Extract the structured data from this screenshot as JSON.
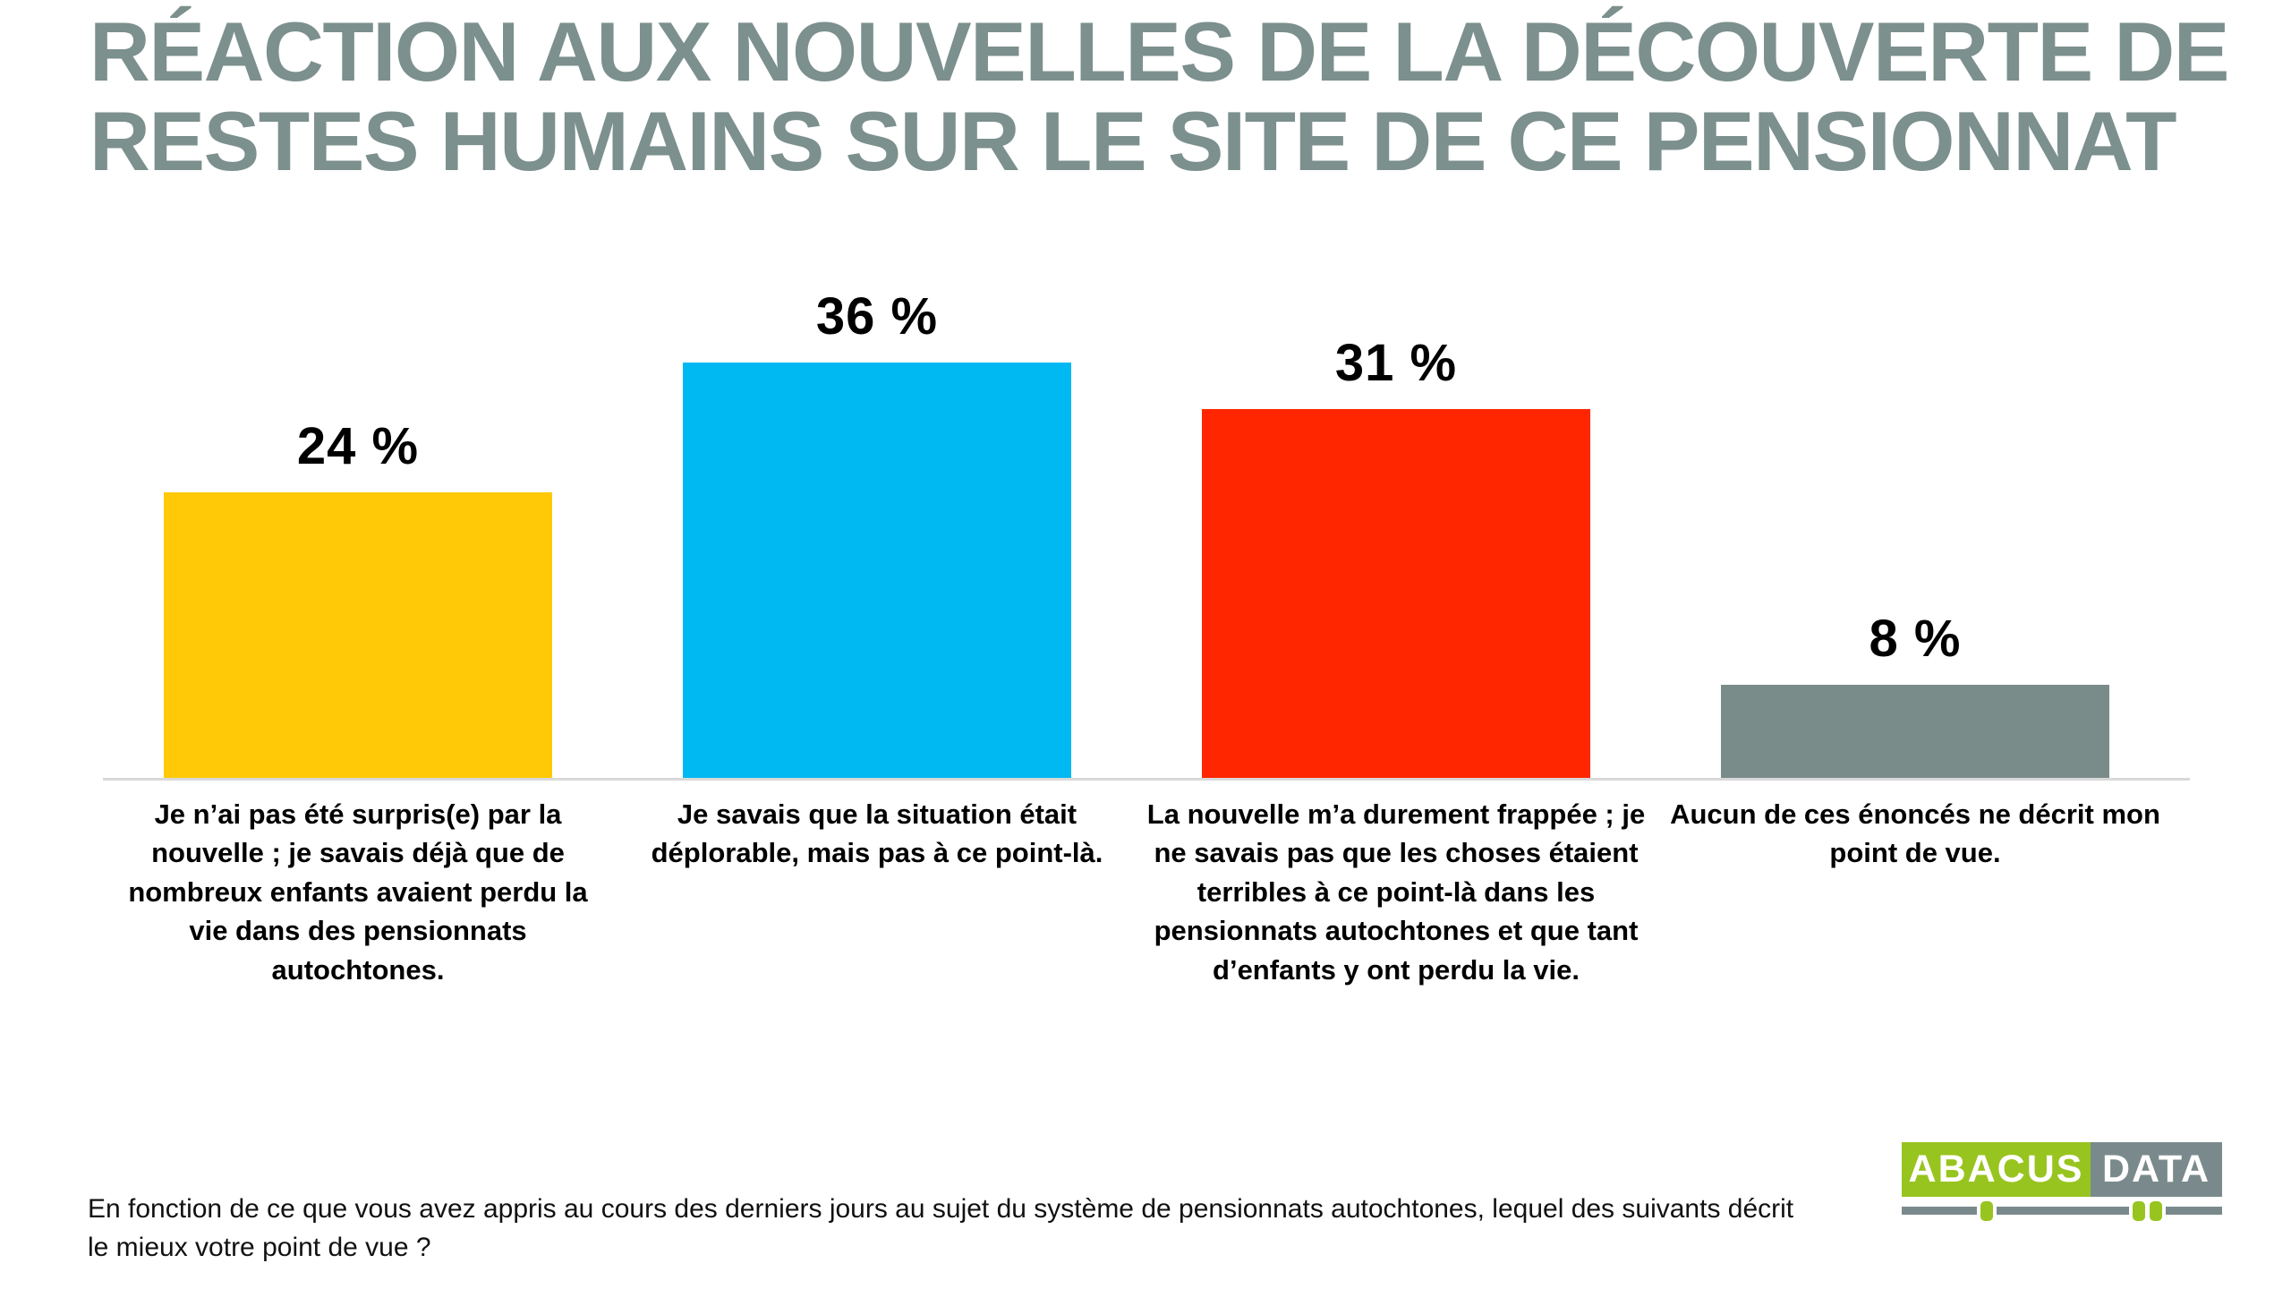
{
  "page": {
    "title": "RÉACTION AUX NOUVELLES DE LA DÉCOUVERTE DE RESTES HUMAINS SUR LE SITE DE CE PENSIONNAT",
    "footnote": "En fonction de ce que vous avez appris au cours des derniers jours au sujet du système de pensionnats autochtones, lequel des suivants décrit le mieux votre point de vue ?"
  },
  "colors": {
    "title_text": "#7C908E",
    "label_text": "#000000",
    "footnote_text": "#111111",
    "axis_line": "#D9D9D9",
    "background": "#FFFFFF"
  },
  "logo": {
    "text_left": "ABACUS",
    "text_right": "DATA",
    "green": "#98C41F",
    "gray": "#7A8A8C"
  },
  "chart_data": {
    "type": "bar",
    "title": "RÉACTION AUX NOUVELLES DE LA DÉCOUVERTE DE RESTES HUMAINS SUR LE SITE DE CE PENSIONNAT",
    "categories": [
      "Je n’ai pas été surpris(e) par la nouvelle ; je savais déjà que de nombreux enfants avaient perdu la vie dans des pensionnats autochtones.",
      "Je savais que la situation était déplorable, mais pas à ce point-là.",
      "La nouvelle m’a durement frappée ; je ne savais pas que les choses étaient terribles à ce point-là dans les pensionnats autochtones et que tant d’enfants y ont perdu la vie.",
      "Aucun de ces énoncés ne décrit mon point de vue."
    ],
    "values": [
      24,
      36,
      31,
      8
    ],
    "value_labels": [
      "24 %",
      "36 %",
      "31 %",
      "8 %"
    ],
    "bar_colors": [
      "#FFC907",
      "#00B9F2",
      "#FF2600",
      "#7A8C8A"
    ],
    "xlabel": "",
    "ylabel": "",
    "ylim": [
      0,
      40
    ],
    "grid": false,
    "legend": false,
    "value_label_position": "above-bar"
  }
}
